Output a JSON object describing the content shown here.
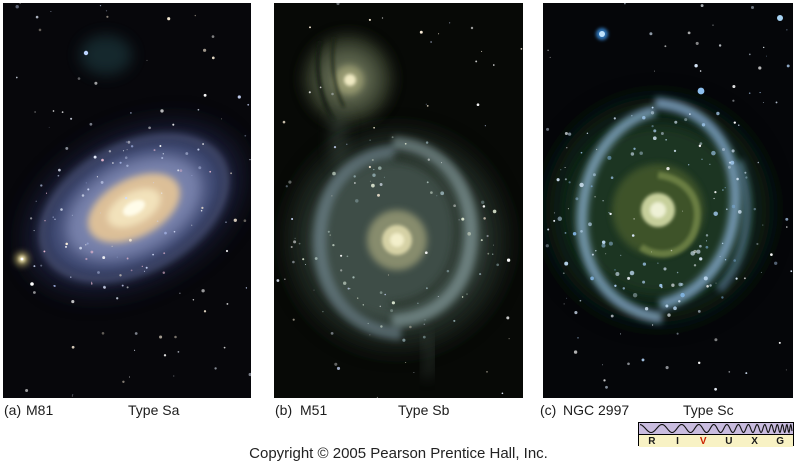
{
  "captions": [
    {
      "label": "(a)",
      "object": "M81",
      "galaxy_type": "Type Sa"
    },
    {
      "label": "(b)",
      "object": "M51",
      "galaxy_type": "Type Sb"
    },
    {
      "label": "(c)",
      "object": "NGC 2997",
      "galaxy_type": "Type Sc"
    }
  ],
  "copyright": "Copyright © 2005 Pearson Prentice Hall, Inc.",
  "spectrum_bar": {
    "letters": [
      {
        "char": "R",
        "color": "#1a1a1a"
      },
      {
        "char": "I",
        "color": "#1a1a1a"
      },
      {
        "char": "V",
        "color": "#cc2200"
      },
      {
        "char": "U",
        "color": "#1a1a1a"
      },
      {
        "char": "X",
        "color": "#1a1a1a"
      },
      {
        "char": "G",
        "color": "#1a1a1a"
      }
    ],
    "wave_band_color": "#c9bcdf",
    "letter_band_color": "#f8f2c4"
  }
}
